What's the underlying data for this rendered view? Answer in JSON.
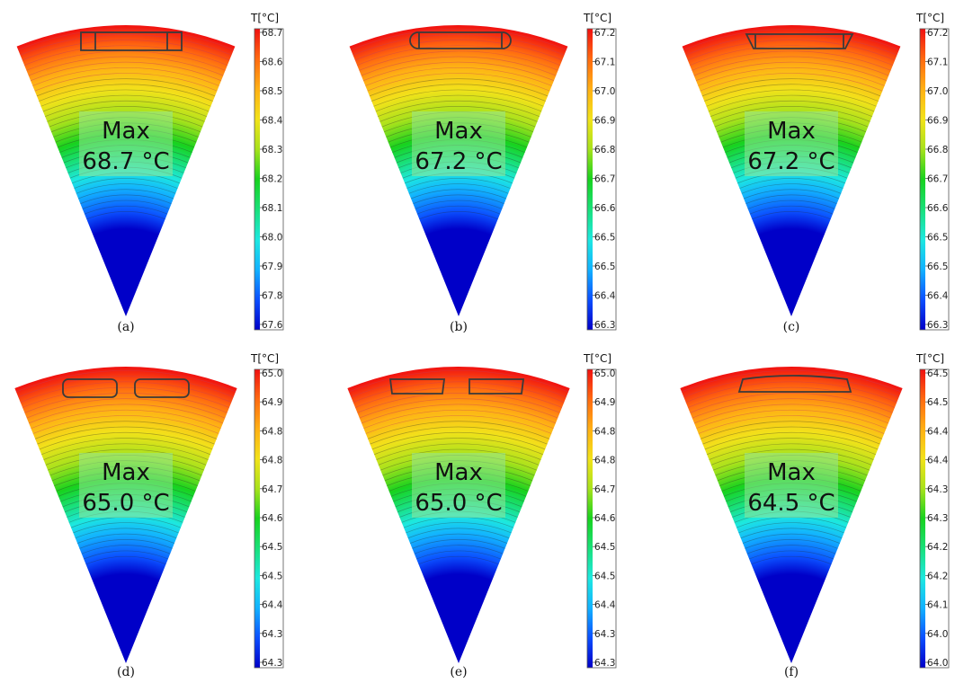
{
  "colormap": [
    "#0000c8",
    "#0b4fff",
    "#12b2ff",
    "#1de8e0",
    "#19e07a",
    "#18d21e",
    "#a8e21c",
    "#f2e21a",
    "#ffb014",
    "#ff6a10",
    "#f01010"
  ],
  "panels": [
    {
      "caption": "(a)",
      "max_label": "Max",
      "max_value": "68.7 °C",
      "unit": "T[°C]",
      "ticks": [
        "68.7",
        "68.6",
        "68.5",
        "68.4",
        "68.3",
        "68.2",
        "68.1",
        "68.0",
        "67.9",
        "67.8",
        "67.6"
      ],
      "insert_shape": "rectangle-split"
    },
    {
      "caption": "(b)",
      "max_label": "Max",
      "max_value": "67.2 °C",
      "unit": "T[°C]",
      "ticks": [
        "67.2",
        "67.1",
        "67.0",
        "66.9",
        "66.8",
        "66.7",
        "66.6",
        "66.5",
        "66.5",
        "66.4",
        "66.3"
      ],
      "insert_shape": "rounded-rectangle"
    },
    {
      "caption": "(c)",
      "max_label": "Max",
      "max_value": "67.2 °C",
      "unit": "T[°C]",
      "ticks": [
        "67.2",
        "67.1",
        "67.0",
        "66.9",
        "66.8",
        "66.7",
        "66.6",
        "66.5",
        "66.5",
        "66.4",
        "66.3"
      ],
      "insert_shape": "trapezoid"
    },
    {
      "caption": "(d)",
      "max_label": "Max",
      "max_value": "65.0 °C",
      "unit": "T[°C]",
      "ticks": [
        "65.0",
        "64.9",
        "64.8",
        "64.8",
        "64.7",
        "64.6",
        "64.5",
        "64.5",
        "64.4",
        "64.3",
        "64.3"
      ],
      "insert_shape": "double-rectangle-rounded"
    },
    {
      "caption": "(e)",
      "max_label": "Max",
      "max_value": "65.0 °C",
      "unit": "T[°C]",
      "ticks": [
        "65.0",
        "64.9",
        "64.8",
        "64.8",
        "64.7",
        "64.6",
        "64.5",
        "64.5",
        "64.4",
        "64.3",
        "64.3"
      ],
      "insert_shape": "double-rectangle-chamfer"
    },
    {
      "caption": "(f)",
      "max_label": "Max",
      "max_value": "64.5 °C",
      "unit": "T[°C]",
      "ticks": [
        "64.5",
        "64.5",
        "64.4",
        "64.4",
        "64.3",
        "64.3",
        "64.2",
        "64.2",
        "64.1",
        "64.0",
        "64.0"
      ],
      "insert_shape": "arc-segment"
    }
  ]
}
